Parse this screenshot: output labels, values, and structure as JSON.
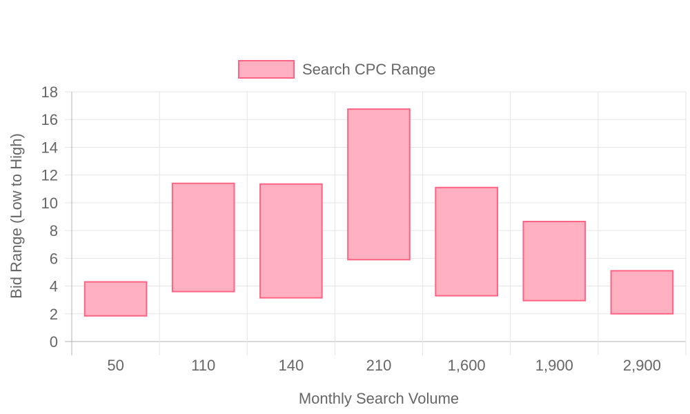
{
  "chart_data": {
    "type": "bar",
    "subtype": "floating-range",
    "title": "",
    "xlabel": "Monthly Search Volume",
    "ylabel": "Bid Range (Low to High)",
    "categories": [
      "50",
      "110",
      "140",
      "210",
      "1,600",
      "1,900",
      "2,900"
    ],
    "series": [
      {
        "name": "Search CPC Range",
        "ranges": [
          [
            1.85,
            4.3
          ],
          [
            3.6,
            11.4
          ],
          [
            3.15,
            11.35
          ],
          [
            5.9,
            16.75
          ],
          [
            3.3,
            11.1
          ],
          [
            2.95,
            8.65
          ],
          [
            2.0,
            5.1
          ]
        ],
        "fill": "#ffb1c1",
        "stroke": "#ff6384"
      }
    ],
    "ylim": [
      0,
      18
    ],
    "yticks": [
      0,
      2,
      4,
      6,
      8,
      10,
      12,
      14,
      16,
      18
    ],
    "grid": true,
    "legend_position": "top"
  },
  "colors": {
    "grid": "#e5e5e5",
    "axis": "#b3b3b3",
    "text": "#666666"
  }
}
